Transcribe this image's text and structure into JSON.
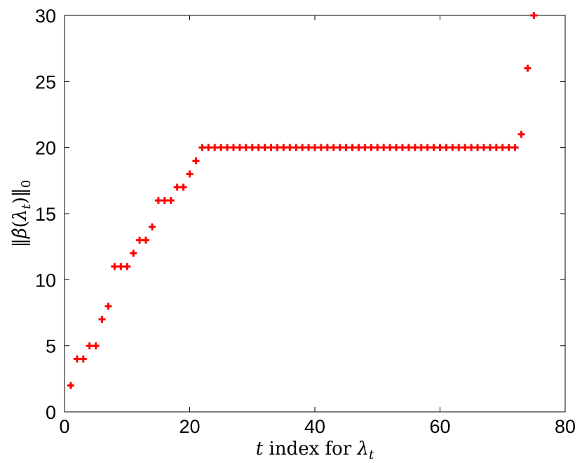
{
  "chart_data": {
    "type": "scatter",
    "title": "",
    "xlabel": "t index for λ_t",
    "ylabel": "||β̂(λ_t)||_0",
    "xlim": [
      0,
      80
    ],
    "ylim": [
      0,
      30
    ],
    "x_ticks": [
      "0",
      "20",
      "40",
      "60",
      "80"
    ],
    "y_ticks": [
      "0",
      "5",
      "10",
      "15",
      "20",
      "25",
      "30"
    ],
    "grid": false,
    "marker": "plus",
    "series": [
      {
        "color": "#ff0000",
        "x": [
          1,
          2,
          3,
          4,
          5,
          6,
          7,
          8,
          9,
          10,
          11,
          12,
          13,
          14,
          15,
          16,
          17,
          18,
          19,
          20,
          21,
          22,
          23,
          24,
          25,
          26,
          27,
          28,
          29,
          30,
          31,
          32,
          33,
          34,
          35,
          36,
          37,
          38,
          39,
          40,
          41,
          42,
          43,
          44,
          45,
          46,
          47,
          48,
          49,
          50,
          51,
          52,
          53,
          54,
          55,
          56,
          57,
          58,
          59,
          60,
          61,
          62,
          63,
          64,
          65,
          66,
          67,
          68,
          69,
          70,
          71,
          72,
          73,
          74,
          75
        ],
        "y": [
          2,
          4,
          4,
          5,
          5,
          7,
          8,
          11,
          11,
          11,
          12,
          13,
          13,
          14,
          16,
          16,
          16,
          17,
          17,
          18,
          19,
          20,
          20,
          20,
          20,
          20,
          20,
          20,
          20,
          20,
          20,
          20,
          20,
          20,
          20,
          20,
          20,
          20,
          20,
          20,
          20,
          20,
          20,
          20,
          20,
          20,
          20,
          20,
          20,
          20,
          20,
          20,
          20,
          20,
          20,
          20,
          20,
          20,
          20,
          20,
          20,
          20,
          20,
          20,
          20,
          20,
          20,
          20,
          20,
          20,
          20,
          20,
          21,
          26,
          30
        ]
      }
    ]
  }
}
